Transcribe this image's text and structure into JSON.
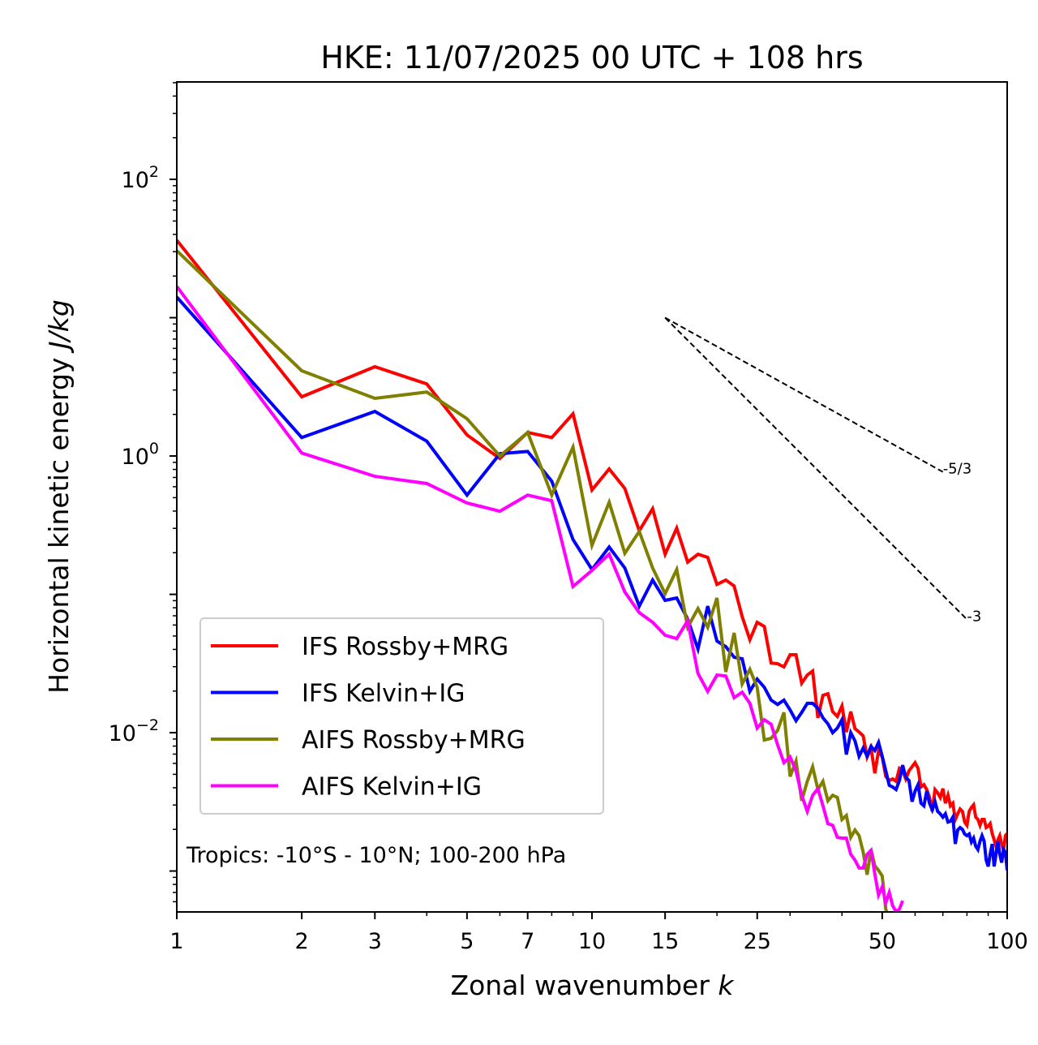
{
  "chart_data": {
    "type": "line",
    "title": "HKE: 11/07/2025 00 UTC + 108 hrs",
    "xlabel": "Zonal wavenumber ",
    "xlabel_italic": "k",
    "ylabel": "Horizontal kinetic energy ",
    "ylabel_italic": "J/kg",
    "xscale": "log",
    "yscale": "log",
    "xlim": [
      1,
      100
    ],
    "ylim": [
      0.000506,
      506
    ],
    "grid": false,
    "legend_position": "lower-left",
    "x_tick_labels": [
      {
        "value": 1,
        "label": "1"
      },
      {
        "value": 2,
        "label": "2"
      },
      {
        "value": 3,
        "label": "3"
      },
      {
        "value": 5,
        "label": "5"
      },
      {
        "value": 7,
        "label": "7"
      },
      {
        "value": 10,
        "label": "10"
      },
      {
        "value": 15,
        "label": "15"
      },
      {
        "value": 25,
        "label": "25"
      },
      {
        "value": 50,
        "label": "50"
      },
      {
        "value": 100,
        "label": "100"
      }
    ],
    "x_minor_ticks": [
      4,
      6,
      8,
      9,
      20,
      30,
      40,
      60,
      70,
      80,
      90
    ],
    "y_tick_labels": [
      {
        "value": 100,
        "base": "10",
        "exp": "2"
      },
      {
        "value": 1,
        "base": "10",
        "exp": "0"
      },
      {
        "value": 0.01,
        "base": "10",
        "exp": "−2"
      }
    ],
    "annotation": "Tropics: -10°S - 10°N; 100-200 hPa",
    "reference_lines": [
      {
        "name": "slope-5-3",
        "label": "-5/3",
        "slope": -1.6667,
        "x0": 15,
        "y0": 10,
        "x1": 70
      },
      {
        "name": "slope-3",
        "label": "-3",
        "slope": -3,
        "x0": 15,
        "y0": 10,
        "x1": 80
      }
    ],
    "series": [
      {
        "name": "IFS Rossby+MRG",
        "color": "#ff0000",
        "x_start": 1,
        "values": [
          36.3,
          2.68,
          4.42,
          3.32,
          1.42,
          0.96,
          1.48,
          1.36,
          2.02,
          0.568,
          0.806,
          0.582,
          0.288,
          0.416,
          0.195,
          0.301,
          0.171,
          0.195,
          0.185,
          0.118,
          0.127,
          0.115,
          0.069,
          0.047,
          0.0628,
          0.0586,
          0.0319,
          0.0315,
          0.0299,
          0.0366,
          0.0366,
          0.0228,
          0.0261,
          0.0279,
          0.0128,
          0.0186,
          0.0191,
          0.0142,
          0.0131,
          0.0156,
          0.0101,
          0.0142,
          0.0107,
          0.0101,
          0.00948,
          0.00667,
          0.00774,
          0.00509,
          0.00743,
          0.00667,
          0.00482,
          0.00451,
          0.00463,
          0.00445,
          0.00552,
          0.0053,
          0.00463,
          0.0053,
          0.00567,
          0.00607,
          0.00552,
          0.00405,
          0.00421,
          0.00388,
          0.0034,
          0.0027,
          0.00388,
          0.00368,
          0.0034,
          0.00394,
          0.00309,
          0.00353,
          0.00296,
          0.00309,
          0.00236,
          0.00259,
          0.00281,
          0.0027,
          0.00226,
          0.00214,
          0.0027,
          0.00288,
          0.00301,
          0.00245,
          0.00236,
          0.00214,
          0.00236,
          0.00236,
          0.00206,
          0.00211,
          0.0022,
          0.00187,
          0.00168,
          0.00151,
          0.00168,
          0.0018,
          0.00157,
          0.00141,
          0.0018,
          0.00187
        ]
      },
      {
        "name": "IFS Kelvin+IG",
        "color": "#0000ff",
        "x_start": 1,
        "values": [
          14.1,
          1.36,
          2.1,
          1.28,
          0.522,
          1.04,
          1.08,
          0.658,
          0.249,
          0.151,
          0.22,
          0.155,
          0.0822,
          0.127,
          0.0904,
          0.0942,
          0.0662,
          0.0402,
          0.0822,
          0.046,
          0.0419,
          0.0351,
          0.0342,
          0.0199,
          0.0244,
          0.0213,
          0.0172,
          0.016,
          0.0172,
          0.0146,
          0.0122,
          0.014,
          0.0163,
          0.0163,
          0.015,
          0.0128,
          0.0116,
          0.01,
          0.0108,
          0.0124,
          0.00695,
          0.01,
          0.00873,
          0.00676,
          0.00774,
          0.00676,
          0.00795,
          0.00743,
          0.00851,
          0.00676,
          0.0053,
          0.00416,
          0.00405,
          0.00388,
          0.00451,
          0.00582,
          0.00475,
          0.00451,
          0.00317,
          0.00378,
          0.00421,
          0.00309,
          0.00296,
          0.00378,
          0.00309,
          0.00277,
          0.00317,
          0.0027,
          0.00259,
          0.00245,
          0.00259,
          0.00226,
          0.00229,
          0.00245,
          0.00157,
          0.00198,
          0.00206,
          0.002,
          0.00185,
          0.0018,
          0.00185,
          0.00162,
          0.00173,
          0.00151,
          0.00143,
          0.00164,
          0.0018,
          0.00164,
          0.0012,
          0.00108,
          0.00132,
          0.00157,
          0.00108,
          0.00132,
          0.00164,
          0.00132,
          0.00115,
          0.00143,
          0.00137,
          0.00101
        ]
      },
      {
        "name": "AIFS Rossby+MRG",
        "color": "#808000",
        "x_start": 1,
        "values": [
          30.5,
          4.13,
          2.61,
          2.9,
          1.86,
          1.0,
          1.48,
          0.522,
          1.16,
          0.226,
          0.463,
          0.198,
          0.285,
          0.155,
          0.101,
          0.151,
          0.0578,
          0.0789,
          0.0578,
          0.0942,
          0.0275,
          0.0526,
          0.0225,
          0.0287,
          0.0213,
          0.00885,
          0.0091,
          0.0104,
          0.014,
          0.00482,
          0.00623,
          0.00322,
          0.00445,
          0.00567,
          0.00388,
          0.00445,
          0.00322,
          0.00353,
          0.0034,
          0.00236,
          0.00252,
          0.00175,
          0.00198,
          0.0018,
          0.00137,
          0.00094,
          0.00143,
          0.00109,
          0.00101,
          0.00092,
          0.00053,
          0.00044
        ]
      },
      {
        "name": "AIFS Kelvin+IG",
        "color": "#ff00ff",
        "x_start": 1,
        "values": [
          16.8,
          1.05,
          0.713,
          0.632,
          0.457,
          0.399,
          0.522,
          0.475,
          0.114,
          0.149,
          0.195,
          0.104,
          0.0738,
          0.0628,
          0.0506,
          0.0479,
          0.0644,
          0.0268,
          0.0199,
          0.0261,
          0.0257,
          0.0179,
          0.0196,
          0.0163,
          0.0108,
          0.0124,
          0.0115,
          0.00817,
          0.00607,
          0.00667,
          0.0053,
          0.00353,
          0.0027,
          0.00353,
          0.00394,
          0.00296,
          0.0022,
          0.00214,
          0.00175,
          0.00173,
          0.00173,
          0.00132,
          0.0012,
          0.00105,
          0.00105,
          0.00132,
          0.00141,
          0.00095,
          0.00067,
          0.00077,
          0.00059,
          0.0007,
          0.00056,
          0.00051,
          0.00053,
          0.00061
        ]
      }
    ]
  }
}
